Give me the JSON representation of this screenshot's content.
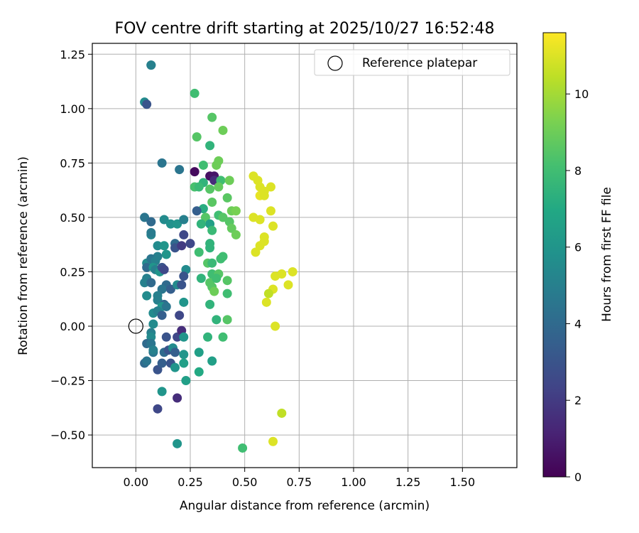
{
  "chart_data": {
    "type": "scatter",
    "title": "FOV centre drift starting at 2025/10/27 16:52:48",
    "xlabel": "Angular distance from reference (arcmin)",
    "ylabel": "Rotation from reference (arcmin)",
    "xlim": [
      -0.2,
      1.75
    ],
    "ylim": [
      -0.65,
      1.3
    ],
    "xticks": [
      0.0,
      0.25,
      0.5,
      0.75,
      1.0,
      1.25,
      1.5
    ],
    "xtick_labels": [
      "0.00",
      "0.25",
      "0.50",
      "0.75",
      "1.00",
      "1.25",
      "1.50"
    ],
    "yticks": [
      -0.5,
      -0.25,
      0.0,
      0.25,
      0.5,
      0.75,
      1.0,
      1.25
    ],
    "ytick_labels": [
      "−0.50",
      "−0.25",
      "0.00",
      "0.25",
      "0.50",
      "0.75",
      "1.00",
      "1.25"
    ],
    "grid": true,
    "legend": {
      "placement": "top-right",
      "entries": [
        {
          "label": "Reference platepar",
          "marker": "open-circle"
        }
      ]
    },
    "reference_point": {
      "x": 0.0,
      "y": 0.0
    },
    "colorbar": {
      "label": "Hours from first FF file",
      "colormap": "viridis",
      "range": [
        0,
        11.6
      ],
      "ticks": [
        0,
        2,
        4,
        6,
        8,
        10
      ],
      "tick_labels": [
        "0",
        "2",
        "4",
        "6",
        "8",
        "10"
      ]
    },
    "points": [
      {
        "x": 0.07,
        "y": 1.2,
        "h": 4.5
      },
      {
        "x": 0.07,
        "y": 1.2,
        "h": 5.0
      },
      {
        "x": 0.04,
        "y": 1.03,
        "h": 5.5
      },
      {
        "x": 0.05,
        "y": 1.02,
        "h": 3.0
      },
      {
        "x": 0.27,
        "y": 1.07,
        "h": 8.0
      },
      {
        "x": 0.35,
        "y": 0.96,
        "h": 8.5
      },
      {
        "x": 0.4,
        "y": 0.9,
        "h": 9.0
      },
      {
        "x": 0.28,
        "y": 0.87,
        "h": 8.5
      },
      {
        "x": 0.34,
        "y": 0.83,
        "h": 7.5
      },
      {
        "x": 0.38,
        "y": 0.76,
        "h": 9.0
      },
      {
        "x": 0.37,
        "y": 0.74,
        "h": 9.0
      },
      {
        "x": 0.31,
        "y": 0.74,
        "h": 8.0
      },
      {
        "x": 0.12,
        "y": 0.75,
        "h": 4.5
      },
      {
        "x": 0.2,
        "y": 0.72,
        "h": 4.5
      },
      {
        "x": 0.27,
        "y": 0.71,
        "h": 0.3
      },
      {
        "x": 0.34,
        "y": 0.69,
        "h": 0.5
      },
      {
        "x": 0.36,
        "y": 0.69,
        "h": 0.7
      },
      {
        "x": 0.36,
        "y": 0.67,
        "h": 1.5
      },
      {
        "x": 0.39,
        "y": 0.67,
        "h": 8.0
      },
      {
        "x": 0.43,
        "y": 0.67,
        "h": 9.0
      },
      {
        "x": 0.31,
        "y": 0.66,
        "h": 7.5
      },
      {
        "x": 0.27,
        "y": 0.64,
        "h": 8.2
      },
      {
        "x": 0.29,
        "y": 0.64,
        "h": 7.8
      },
      {
        "x": 0.34,
        "y": 0.63,
        "h": 8.5
      },
      {
        "x": 0.38,
        "y": 0.64,
        "h": 8.8
      },
      {
        "x": 0.35,
        "y": 0.57,
        "h": 8.6
      },
      {
        "x": 0.42,
        "y": 0.59,
        "h": 8.6
      },
      {
        "x": 0.31,
        "y": 0.54,
        "h": 7.2
      },
      {
        "x": 0.28,
        "y": 0.53,
        "h": 3.5
      },
      {
        "x": 0.38,
        "y": 0.51,
        "h": 8.0
      },
      {
        "x": 0.4,
        "y": 0.5,
        "h": 8.5
      },
      {
        "x": 0.44,
        "y": 0.53,
        "h": 9.0
      },
      {
        "x": 0.46,
        "y": 0.53,
        "h": 9.2
      },
      {
        "x": 0.32,
        "y": 0.5,
        "h": 8.5
      },
      {
        "x": 0.34,
        "y": 0.47,
        "h": 6.5
      },
      {
        "x": 0.3,
        "y": 0.47,
        "h": 7.5
      },
      {
        "x": 0.43,
        "y": 0.48,
        "h": 8.5
      },
      {
        "x": 0.44,
        "y": 0.45,
        "h": 8.8
      },
      {
        "x": 0.46,
        "y": 0.42,
        "h": 9.0
      },
      {
        "x": 0.35,
        "y": 0.44,
        "h": 7.8
      },
      {
        "x": 0.04,
        "y": 0.5,
        "h": 4.5
      },
      {
        "x": 0.07,
        "y": 0.48,
        "h": 4.0
      },
      {
        "x": 0.13,
        "y": 0.49,
        "h": 5.5
      },
      {
        "x": 0.16,
        "y": 0.47,
        "h": 5.8
      },
      {
        "x": 0.19,
        "y": 0.47,
        "h": 6.0
      },
      {
        "x": 0.22,
        "y": 0.49,
        "h": 5.0
      },
      {
        "x": 0.07,
        "y": 0.42,
        "h": 5.2
      },
      {
        "x": 0.07,
        "y": 0.43,
        "h": 4.8
      },
      {
        "x": 0.22,
        "y": 0.42,
        "h": 2.5
      },
      {
        "x": 0.1,
        "y": 0.37,
        "h": 5.5
      },
      {
        "x": 0.13,
        "y": 0.37,
        "h": 6.0
      },
      {
        "x": 0.18,
        "y": 0.38,
        "h": 4.0
      },
      {
        "x": 0.18,
        "y": 0.36,
        "h": 3.0
      },
      {
        "x": 0.21,
        "y": 0.37,
        "h": 2.0
      },
      {
        "x": 0.25,
        "y": 0.38,
        "h": 2.5
      },
      {
        "x": 0.14,
        "y": 0.33,
        "h": 6.0
      },
      {
        "x": 0.1,
        "y": 0.32,
        "h": 5.0
      },
      {
        "x": 0.05,
        "y": 0.29,
        "h": 5.5
      },
      {
        "x": 0.07,
        "y": 0.31,
        "h": 4.5
      },
      {
        "x": 0.09,
        "y": 0.3,
        "h": 5.0
      },
      {
        "x": 0.05,
        "y": 0.27,
        "h": 4.0
      },
      {
        "x": 0.08,
        "y": 0.27,
        "h": 6.0
      },
      {
        "x": 0.09,
        "y": 0.26,
        "h": 5.0
      },
      {
        "x": 0.11,
        "y": 0.25,
        "h": 6.0
      },
      {
        "x": 0.12,
        "y": 0.27,
        "h": 3.0
      },
      {
        "x": 0.13,
        "y": 0.26,
        "h": 2.5
      },
      {
        "x": 0.23,
        "y": 0.26,
        "h": 5.5
      },
      {
        "x": 0.22,
        "y": 0.23,
        "h": 3.0
      },
      {
        "x": 0.05,
        "y": 0.22,
        "h": 5.0
      },
      {
        "x": 0.04,
        "y": 0.2,
        "h": 5.0
      },
      {
        "x": 0.07,
        "y": 0.2,
        "h": 4.0
      },
      {
        "x": 0.14,
        "y": 0.19,
        "h": 4.0
      },
      {
        "x": 0.12,
        "y": 0.17,
        "h": 4.5
      },
      {
        "x": 0.16,
        "y": 0.17,
        "h": 3.5
      },
      {
        "x": 0.19,
        "y": 0.19,
        "h": 5.5
      },
      {
        "x": 0.21,
        "y": 0.19,
        "h": 3.0
      },
      {
        "x": 0.05,
        "y": 0.14,
        "h": 5.5
      },
      {
        "x": 0.1,
        "y": 0.14,
        "h": 5.0
      },
      {
        "x": 0.1,
        "y": 0.12,
        "h": 5.0
      },
      {
        "x": 0.13,
        "y": 0.1,
        "h": 4.0
      },
      {
        "x": 0.12,
        "y": 0.09,
        "h": 6.0
      },
      {
        "x": 0.14,
        "y": 0.09,
        "h": 4.5
      },
      {
        "x": 0.22,
        "y": 0.11,
        "h": 6.0
      },
      {
        "x": 0.08,
        "y": 0.06,
        "h": 5.5
      },
      {
        "x": 0.1,
        "y": 0.07,
        "h": 5.0
      },
      {
        "x": 0.12,
        "y": 0.05,
        "h": 3.5
      },
      {
        "x": 0.2,
        "y": 0.05,
        "h": 2.5
      },
      {
        "x": 0.08,
        "y": 0.01,
        "h": 5.5
      },
      {
        "x": 0.07,
        "y": -0.03,
        "h": 5.0
      },
      {
        "x": 0.07,
        "y": -0.05,
        "h": 5.5
      },
      {
        "x": 0.14,
        "y": -0.05,
        "h": 3.0
      },
      {
        "x": 0.19,
        "y": -0.05,
        "h": 2.5
      },
      {
        "x": 0.21,
        "y": -0.02,
        "h": 1.5
      },
      {
        "x": 0.22,
        "y": -0.05,
        "h": 6.0
      },
      {
        "x": 0.05,
        "y": -0.08,
        "h": 4.0
      },
      {
        "x": 0.07,
        "y": -0.08,
        "h": 4.5
      },
      {
        "x": 0.08,
        "y": -0.12,
        "h": 4.5
      },
      {
        "x": 0.08,
        "y": -0.11,
        "h": 5.0
      },
      {
        "x": 0.13,
        "y": -0.12,
        "h": 4.0
      },
      {
        "x": 0.15,
        "y": -0.11,
        "h": 3.0
      },
      {
        "x": 0.17,
        "y": -0.1,
        "h": 5.5
      },
      {
        "x": 0.18,
        "y": -0.12,
        "h": 3.5
      },
      {
        "x": 0.22,
        "y": -0.13,
        "h": 6.0
      },
      {
        "x": 0.29,
        "y": -0.12,
        "h": 6.5
      },
      {
        "x": 0.33,
        "y": -0.05,
        "h": 7.5
      },
      {
        "x": 0.4,
        "y": -0.05,
        "h": 8.0
      },
      {
        "x": 0.04,
        "y": -0.17,
        "h": 4.0
      },
      {
        "x": 0.05,
        "y": -0.16,
        "h": 4.5
      },
      {
        "x": 0.1,
        "y": -0.2,
        "h": 3.0
      },
      {
        "x": 0.12,
        "y": -0.17,
        "h": 3.5
      },
      {
        "x": 0.16,
        "y": -0.17,
        "h": 3.0
      },
      {
        "x": 0.18,
        "y": -0.19,
        "h": 6.0
      },
      {
        "x": 0.22,
        "y": -0.17,
        "h": 6.5
      },
      {
        "x": 0.29,
        "y": -0.21,
        "h": 7.0
      },
      {
        "x": 0.35,
        "y": -0.16,
        "h": 6.5
      },
      {
        "x": 0.12,
        "y": -0.3,
        "h": 6.0
      },
      {
        "x": 0.23,
        "y": -0.25,
        "h": 6.5
      },
      {
        "x": 0.1,
        "y": -0.38,
        "h": 2.5
      },
      {
        "x": 0.19,
        "y": -0.33,
        "h": 1.5
      },
      {
        "x": 0.19,
        "y": -0.54,
        "h": 6.0
      },
      {
        "x": 0.49,
        "y": -0.56,
        "h": 8.0
      },
      {
        "x": 0.34,
        "y": 0.38,
        "h": 7.5
      },
      {
        "x": 0.34,
        "y": 0.36,
        "h": 7.5
      },
      {
        "x": 0.29,
        "y": 0.34,
        "h": 8.0
      },
      {
        "x": 0.4,
        "y": 0.32,
        "h": 8.0
      },
      {
        "x": 0.39,
        "y": 0.31,
        "h": 8.0
      },
      {
        "x": 0.33,
        "y": 0.29,
        "h": 8.5
      },
      {
        "x": 0.35,
        "y": 0.29,
        "h": 7.8
      },
      {
        "x": 0.35,
        "y": 0.24,
        "h": 8.0
      },
      {
        "x": 0.38,
        "y": 0.24,
        "h": 8.5
      },
      {
        "x": 0.3,
        "y": 0.22,
        "h": 7.5
      },
      {
        "x": 0.34,
        "y": 0.2,
        "h": 8.5
      },
      {
        "x": 0.35,
        "y": 0.18,
        "h": 8.5
      },
      {
        "x": 0.36,
        "y": 0.16,
        "h": 9.0
      },
      {
        "x": 0.37,
        "y": 0.22,
        "h": 8.0
      },
      {
        "x": 0.42,
        "y": 0.21,
        "h": 8.5
      },
      {
        "x": 0.42,
        "y": 0.15,
        "h": 8.0
      },
      {
        "x": 0.34,
        "y": 0.1,
        "h": 7.5
      },
      {
        "x": 0.37,
        "y": 0.03,
        "h": 7.5
      },
      {
        "x": 0.42,
        "y": 0.03,
        "h": 8.5
      },
      {
        "x": 0.54,
        "y": 0.69,
        "h": 11.0
      },
      {
        "x": 0.56,
        "y": 0.67,
        "h": 11.0
      },
      {
        "x": 0.57,
        "y": 0.64,
        "h": 11.0
      },
      {
        "x": 0.57,
        "y": 0.6,
        "h": 11.2
      },
      {
        "x": 0.59,
        "y": 0.62,
        "h": 11.0
      },
      {
        "x": 0.59,
        "y": 0.6,
        "h": 11.0
      },
      {
        "x": 0.62,
        "y": 0.64,
        "h": 11.0
      },
      {
        "x": 0.54,
        "y": 0.5,
        "h": 11.0
      },
      {
        "x": 0.57,
        "y": 0.49,
        "h": 11.0
      },
      {
        "x": 0.62,
        "y": 0.53,
        "h": 11.0
      },
      {
        "x": 0.63,
        "y": 0.46,
        "h": 11.0
      },
      {
        "x": 0.59,
        "y": 0.41,
        "h": 11.0
      },
      {
        "x": 0.59,
        "y": 0.39,
        "h": 11.0
      },
      {
        "x": 0.57,
        "y": 0.37,
        "h": 11.0
      },
      {
        "x": 0.55,
        "y": 0.34,
        "h": 11.0
      },
      {
        "x": 0.64,
        "y": 0.23,
        "h": 11.0
      },
      {
        "x": 0.67,
        "y": 0.24,
        "h": 11.0
      },
      {
        "x": 0.72,
        "y": 0.25,
        "h": 11.0
      },
      {
        "x": 0.7,
        "y": 0.19,
        "h": 11.0
      },
      {
        "x": 0.63,
        "y": 0.17,
        "h": 11.0
      },
      {
        "x": 0.61,
        "y": 0.15,
        "h": 10.5
      },
      {
        "x": 0.6,
        "y": 0.11,
        "h": 11.0
      },
      {
        "x": 0.64,
        "y": 0.0,
        "h": 11.0
      },
      {
        "x": 0.67,
        "y": -0.4,
        "h": 10.5
      },
      {
        "x": 0.63,
        "y": -0.53,
        "h": 11.0
      }
    ]
  }
}
